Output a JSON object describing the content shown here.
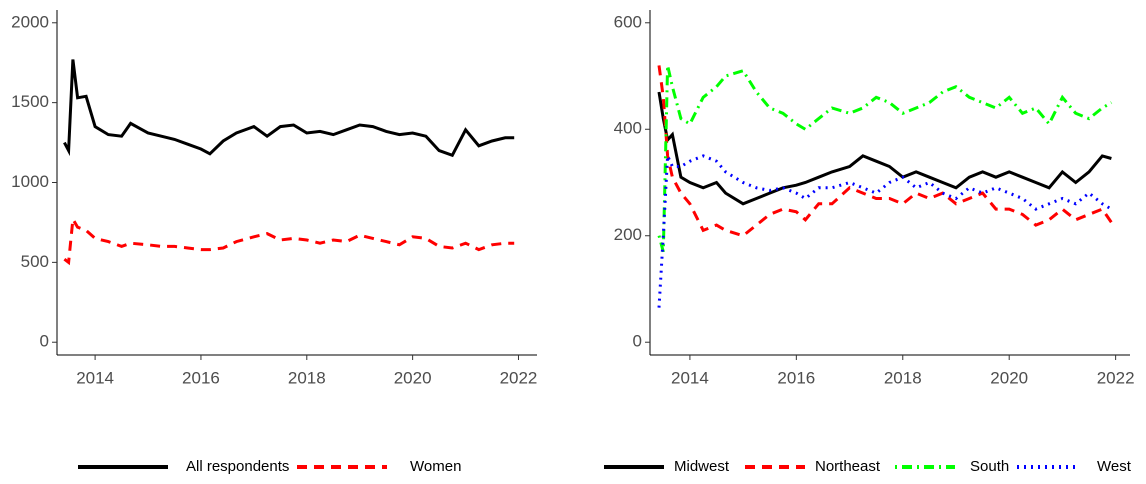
{
  "chart_data": [
    {
      "type": "line",
      "x": [
        2013.42,
        2013.5,
        2013.58,
        2013.67,
        2013.83,
        2014.0,
        2014.25,
        2014.5,
        2014.67,
        2015.0,
        2015.25,
        2015.5,
        2015.75,
        2016.0,
        2016.17,
        2016.42,
        2016.67,
        2017.0,
        2017.25,
        2017.5,
        2017.75,
        2018.0,
        2018.25,
        2018.5,
        2018.75,
        2019.0,
        2019.25,
        2019.5,
        2019.75,
        2020.0,
        2020.25,
        2020.5,
        2020.75,
        2021.0,
        2021.25,
        2021.5,
        2021.75,
        2021.92
      ],
      "series": [
        {
          "name": "All respondents",
          "color": "#000000",
          "linestyle": "solid",
          "values": [
            1250,
            1200,
            1770,
            1530,
            1540,
            1350,
            1300,
            1290,
            1370,
            1310,
            1290,
            1270,
            1240,
            1210,
            1180,
            1260,
            1310,
            1350,
            1290,
            1350,
            1360,
            1310,
            1320,
            1300,
            1330,
            1360,
            1350,
            1320,
            1300,
            1310,
            1290,
            1200,
            1170,
            1330,
            1230,
            1260,
            1280,
            1280
          ]
        },
        {
          "name": "Women",
          "color": "#ff0000",
          "linestyle": "dashed",
          "values": [
            520,
            500,
            770,
            720,
            700,
            650,
            630,
            600,
            620,
            610,
            600,
            600,
            590,
            580,
            580,
            590,
            630,
            660,
            680,
            640,
            650,
            640,
            620,
            640,
            630,
            670,
            650,
            630,
            610,
            660,
            650,
            600,
            590,
            620,
            580,
            610,
            620,
            620
          ]
        }
      ],
      "xlim": [
        2013.28,
        2022.35
      ],
      "xticks": [
        2014,
        2016,
        2018,
        2020,
        2022
      ],
      "ylim": [
        -80,
        2080
      ],
      "yticks": [
        0,
        500,
        1000,
        1500,
        2000
      ],
      "legend": "bottom"
    },
    {
      "type": "line",
      "x": [
        2013.42,
        2013.5,
        2013.58,
        2013.67,
        2013.83,
        2014.0,
        2014.25,
        2014.5,
        2014.67,
        2015.0,
        2015.25,
        2015.5,
        2015.75,
        2016.0,
        2016.17,
        2016.42,
        2016.67,
        2017.0,
        2017.25,
        2017.5,
        2017.75,
        2018.0,
        2018.25,
        2018.5,
        2018.75,
        2019.0,
        2019.25,
        2019.5,
        2019.75,
        2020.0,
        2020.25,
        2020.5,
        2020.75,
        2021.0,
        2021.25,
        2021.5,
        2021.75,
        2021.92
      ],
      "series": [
        {
          "name": "Midwest",
          "color": "#000000",
          "linestyle": "solid",
          "values": [
            470,
            420,
            380,
            390,
            310,
            300,
            290,
            300,
            280,
            260,
            270,
            280,
            290,
            295,
            300,
            310,
            320,
            330,
            350,
            340,
            330,
            310,
            320,
            310,
            300,
            290,
            310,
            320,
            310,
            320,
            310,
            300,
            290,
            320,
            300,
            320,
            350,
            345
          ]
        },
        {
          "name": "Northeast",
          "color": "#ff0000",
          "linestyle": "dashed",
          "values": [
            520,
            460,
            350,
            310,
            280,
            260,
            210,
            220,
            210,
            200,
            220,
            240,
            250,
            245,
            230,
            260,
            260,
            290,
            280,
            270,
            270,
            260,
            280,
            270,
            280,
            260,
            270,
            280,
            250,
            250,
            240,
            220,
            230,
            250,
            230,
            240,
            250,
            225
          ]
        },
        {
          "name": "South",
          "color": "#00ff00",
          "linestyle": "dotdash",
          "values": [
            200,
            170,
            520,
            480,
            420,
            410,
            460,
            480,
            500,
            510,
            470,
            440,
            430,
            410,
            400,
            420,
            440,
            430,
            440,
            460,
            450,
            430,
            440,
            450,
            470,
            480,
            460,
            450,
            440,
            460,
            430,
            440,
            410,
            460,
            430,
            420,
            440,
            450
          ]
        },
        {
          "name": "West",
          "color": "#0000ff",
          "linestyle": "dotted",
          "values": [
            65,
            200,
            350,
            330,
            330,
            340,
            350,
            340,
            320,
            300,
            290,
            285,
            290,
            280,
            270,
            290,
            290,
            300,
            290,
            280,
            300,
            310,
            290,
            300,
            280,
            270,
            290,
            280,
            290,
            280,
            270,
            250,
            260,
            270,
            260,
            280,
            260,
            250
          ]
        }
      ],
      "xlim": [
        2013.25,
        2022.27
      ],
      "xticks": [
        2014,
        2016,
        2018,
        2020,
        2022
      ],
      "ylim": [
        -24,
        624
      ],
      "yticks": [
        0,
        200,
        400,
        600
      ],
      "legend": "bottom"
    }
  ]
}
